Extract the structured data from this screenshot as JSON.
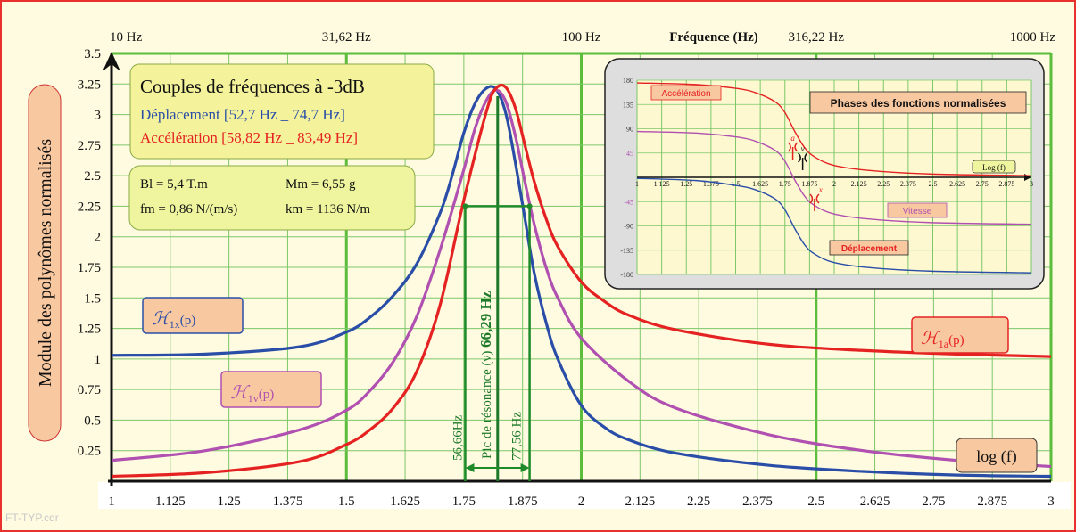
{
  "footer": "FT-TYP.cdr",
  "chart_data": {
    "type": "line",
    "ylabel": "Module des polynômes normalisés",
    "xlabel": "log (f)",
    "top_axis_label": "Fréquence (Hz)",
    "top_ticks": [
      {
        "log": 1,
        "label": "10 Hz"
      },
      {
        "log": 1.5,
        "label": "31,62 Hz"
      },
      {
        "log": 2,
        "label": "100 Hz"
      },
      {
        "log": 2.5,
        "label": "316,22 Hz"
      },
      {
        "log": 3,
        "label": "1000 Hz"
      }
    ],
    "x_ticks": [
      1,
      1.125,
      1.25,
      1.375,
      1.5,
      1.625,
      1.75,
      1.875,
      2,
      2.125,
      2.25,
      2.375,
      2.5,
      2.625,
      2.75,
      2.875,
      3
    ],
    "x_tick_labels": [
      "1",
      "1.125",
      "1.25",
      "1.375",
      "1.5",
      "1.625",
      "1.75",
      "1.875",
      "2",
      "2.125",
      "2.25",
      "2.375",
      "2.5",
      "2.625",
      "2.75",
      "2.875",
      "3"
    ],
    "y_ticks": [
      0.25,
      0.5,
      0.75,
      1,
      1.25,
      1.5,
      1.75,
      2,
      2.25,
      2.5,
      2.75,
      3,
      3.25,
      3.5
    ],
    "y_tick_labels": [
      "0.25",
      "0.5",
      "0.75",
      "1",
      "1.25",
      "1.5",
      "1.75",
      "2",
      "2.25",
      "2.5",
      "2.75",
      "3",
      "3.25",
      "3.5"
    ],
    "xlim": [
      1,
      3
    ],
    "ylim": [
      0,
      3.5
    ],
    "series": [
      {
        "key": "x",
        "label_main": "ℋ",
        "label_sub": "1x",
        "label_tail": "(p)",
        "color": "#2a4ea8",
        "x": [
          1,
          1.2,
          1.4,
          1.5,
          1.55,
          1.6,
          1.65,
          1.7,
          1.725,
          1.75,
          1.775,
          1.8,
          1.82,
          1.84,
          1.86,
          1.88,
          1.9,
          1.925,
          1.95,
          2,
          2.05,
          2.1,
          2.2,
          2.4,
          2.6,
          2.8,
          3
        ],
        "y": [
          1.03,
          1.04,
          1.1,
          1.22,
          1.34,
          1.52,
          1.78,
          2.2,
          2.5,
          2.85,
          3.1,
          3.22,
          3.2,
          3.0,
          2.6,
          2.15,
          1.7,
          1.3,
          1.0,
          0.62,
          0.44,
          0.34,
          0.23,
          0.13,
          0.08,
          0.05,
          0.04
        ]
      },
      {
        "key": "v",
        "label_main": "ℋ",
        "label_sub": "1v",
        "label_tail": "(p)",
        "color": "#b050b0",
        "x": [
          1,
          1.2,
          1.4,
          1.5,
          1.55,
          1.6,
          1.65,
          1.7,
          1.75,
          1.775,
          1.8,
          1.82,
          1.84,
          1.86,
          1.88,
          1.9,
          1.925,
          1.95,
          2,
          2.1,
          2.2,
          2.4,
          2.6,
          2.8,
          3
        ],
        "y": [
          0.17,
          0.25,
          0.42,
          0.58,
          0.74,
          0.98,
          1.35,
          1.9,
          2.55,
          2.9,
          3.13,
          3.2,
          3.1,
          2.82,
          2.45,
          2.1,
          1.75,
          1.5,
          1.17,
          0.82,
          0.6,
          0.38,
          0.25,
          0.17,
          0.12
        ]
      },
      {
        "key": "a",
        "label_main": "ℋ",
        "label_sub": "1a",
        "label_tail": "(p)",
        "color": "#e52222",
        "x": [
          1,
          1.2,
          1.4,
          1.5,
          1.55,
          1.6,
          1.65,
          1.7,
          1.75,
          1.8,
          1.82,
          1.84,
          1.86,
          1.88,
          1.9,
          1.925,
          1.95,
          2,
          2.05,
          2.1,
          2.2,
          2.4,
          2.6,
          2.8,
          3
        ],
        "y": [
          0.04,
          0.07,
          0.16,
          0.3,
          0.42,
          0.6,
          0.9,
          1.45,
          2.3,
          3.05,
          3.22,
          3.22,
          3.05,
          2.75,
          2.45,
          2.15,
          1.92,
          1.63,
          1.47,
          1.36,
          1.24,
          1.12,
          1.07,
          1.04,
          1.02
        ]
      }
    ],
    "resonance": {
      "x": 1.822,
      "label_pre": "Pic de résonance (ν)",
      "label_val": "66,29 Hz",
      "low": 1.753,
      "high": 1.89,
      "low_label": "56,66Hz",
      "high_label": "77,56 Hz",
      "band_y": 2.25
    },
    "info_box_3db": {
      "title": "Couples de fréquences à -3dB",
      "line1": "Déplacement [52,7 Hz _  74,7 Hz]",
      "line2": "Accélération  [58,82 Hz _ 83,49 Hz]"
    },
    "params_box": {
      "bl": "Bl = 5,4 T.m",
      "mm": "Mm = 6,55 g",
      "fm": "fm = 0,86 N/(m/s)",
      "km": "km = 1136 N/m"
    }
  },
  "inset": {
    "title": "Phases des fonctions normalisées",
    "xlabel": "Log (f)",
    "x_tick_labels": [
      "1",
      "1.125",
      "1.25",
      "1.375",
      "1.5",
      "1.625",
      "1.75",
      "1.875",
      "2",
      "2.125",
      "2.25",
      "2.375",
      "2.5",
      "2.625",
      "2.75",
      "2.875",
      "3"
    ],
    "y_tick_labels": [
      "180",
      "135",
      "90",
      "45",
      "-45",
      "-90",
      "-135",
      "-180"
    ],
    "y_ticks": [
      180,
      135,
      90,
      45,
      -45,
      -90,
      -135,
      -180
    ],
    "marker_labels": [
      "a",
      "v",
      "x"
    ],
    "curves": [
      {
        "name": "Accélération",
        "color": "#e52222",
        "x": [
          1,
          1.3,
          1.5,
          1.6,
          1.7,
          1.75,
          1.8,
          1.85,
          1.9,
          2,
          2.2,
          2.5,
          3
        ],
        "y": [
          175,
          172,
          165,
          157,
          140,
          120,
          85,
          55,
          38,
          22,
          12,
          6,
          3
        ]
      },
      {
        "name": "Vitesse",
        "color": "#b050b0",
        "x": [
          1,
          1.3,
          1.5,
          1.6,
          1.7,
          1.75,
          1.8,
          1.85,
          1.9,
          2,
          2.2,
          2.5,
          3
        ],
        "y": [
          85,
          82,
          75,
          67,
          50,
          30,
          -5,
          -35,
          -52,
          -68,
          -78,
          -84,
          -87
        ]
      },
      {
        "name": "Déplacement",
        "color": "#2a4ea8",
        "x": [
          1,
          1.3,
          1.5,
          1.6,
          1.7,
          1.75,
          1.8,
          1.85,
          1.9,
          2,
          2.2,
          2.5,
          3
        ],
        "y": [
          -2,
          -6,
          -15,
          -23,
          -40,
          -60,
          -95,
          -125,
          -142,
          -158,
          -168,
          -174,
          -177
        ]
      }
    ]
  }
}
